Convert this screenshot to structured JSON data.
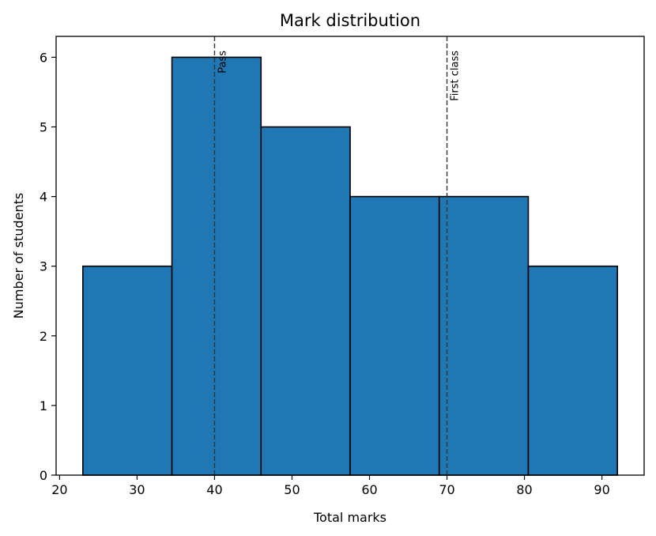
{
  "chart_data": {
    "type": "bar",
    "title": "Mark distribution",
    "xlabel": "Total marks",
    "ylabel": "Number of students",
    "xlim": [
      19.55,
      95.45
    ],
    "ylim": [
      0,
      6.3
    ],
    "xticks": [
      20,
      30,
      40,
      50,
      60,
      70,
      80,
      90
    ],
    "yticks": [
      0,
      1,
      2,
      3,
      4,
      5,
      6
    ],
    "bins": [
      {
        "start": 23.0,
        "end": 34.5,
        "count": 3
      },
      {
        "start": 34.5,
        "end": 46.0,
        "count": 6
      },
      {
        "start": 46.0,
        "end": 57.5,
        "count": 5
      },
      {
        "start": 57.5,
        "end": 69.0,
        "count": 4
      },
      {
        "start": 69.0,
        "end": 80.5,
        "count": 4
      },
      {
        "start": 80.5,
        "end": 92.0,
        "count": 3
      }
    ],
    "reference_lines": [
      {
        "x": 40,
        "label": "Pass"
      },
      {
        "x": 70,
        "label": "First class"
      }
    ],
    "grid": false,
    "colors": {
      "bar_fill": "#1f77b4",
      "bar_edge": "#000000",
      "ref_line": "#333333"
    }
  }
}
